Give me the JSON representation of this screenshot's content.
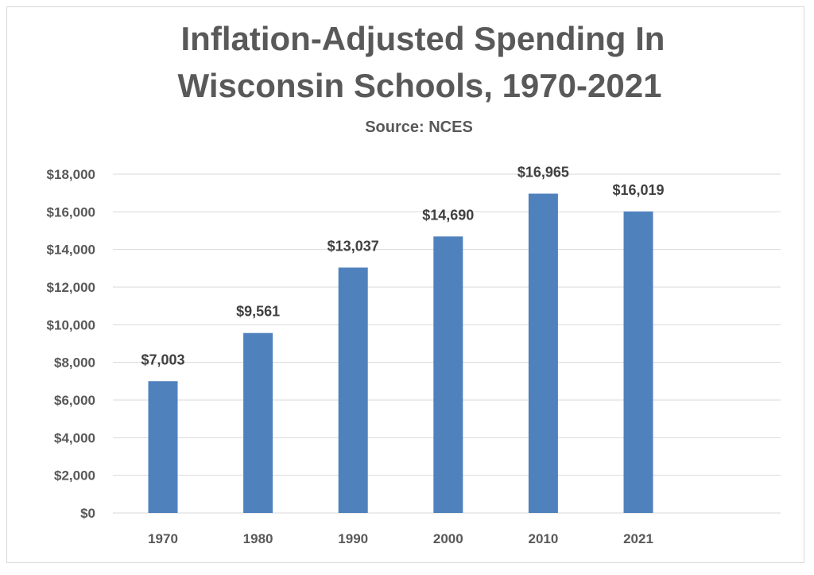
{
  "chart_data": {
    "type": "bar",
    "title_line1": "Inflation-Adjusted Spending In",
    "title_line2": "Wisconsin Schools, 1970-2021",
    "subtitle": "Source: NCES",
    "xlabel": "",
    "ylabel": "",
    "categories": [
      "1970",
      "1980",
      "1990",
      "2000",
      "2010",
      "2021"
    ],
    "values": [
      7003,
      9561,
      13037,
      14690,
      16965,
      16019
    ],
    "data_labels": [
      "$7,003",
      "$9,561",
      "$13,037",
      "$14,690",
      "$16,965",
      "$16,019"
    ],
    "ylim": [
      0,
      18000
    ],
    "yticks": [
      0,
      2000,
      4000,
      6000,
      8000,
      10000,
      12000,
      14000,
      16000,
      18000
    ],
    "ytick_labels": [
      "$0",
      "$2,000",
      "$4,000",
      "$6,000",
      "$8,000",
      "$10,000",
      "$12,000",
      "$14,000",
      "$16,000",
      "$18,000"
    ],
    "grid": true,
    "legend": "none",
    "bar_color": "#4f81bd",
    "grid_color": "#d9d9d9"
  }
}
